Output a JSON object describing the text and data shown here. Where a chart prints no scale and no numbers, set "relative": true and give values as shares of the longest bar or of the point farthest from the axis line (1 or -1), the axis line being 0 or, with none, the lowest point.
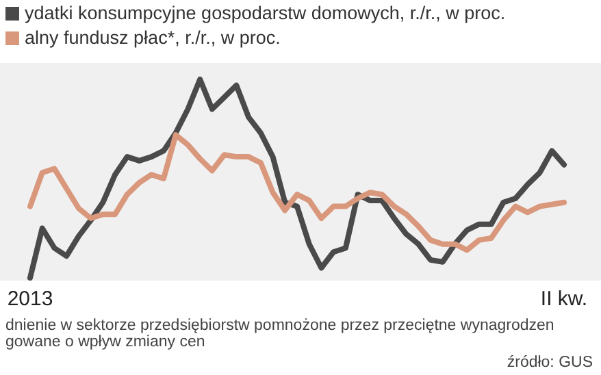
{
  "chart_data": {
    "type": "line",
    "relative": true,
    "legend": "top left",
    "categories": [
      "2013",
      null,
      null,
      null,
      null,
      null,
      null,
      null,
      null,
      null,
      null,
      null,
      null,
      null,
      null,
      null,
      null,
      null,
      null,
      null,
      null,
      null,
      null,
      null,
      null,
      null,
      null,
      null,
      null,
      null,
      null,
      null,
      null,
      null,
      null,
      null,
      null,
      null,
      null,
      null,
      null,
      null,
      null,
      null,
      "II kw."
    ],
    "series": [
      {
        "name": "ydatki konsumpcyjne gospodarstw domowych, r./r., w proc.",
        "color": "#4a4a4a",
        "values": [
          0,
          0.25,
          0.15,
          0.11,
          0.21,
          0.29,
          0.38,
          0.52,
          0.61,
          0.59,
          0.61,
          0.64,
          0.73,
          0.85,
          1,
          0.85,
          0.91,
          0.97,
          0.81,
          0.73,
          0.61,
          0.38,
          0.36,
          0.17,
          0.05,
          0.13,
          0.15,
          0.42,
          0.39,
          0.39,
          0.3,
          0.22,
          0.17,
          0.09,
          0.08,
          0.17,
          0.24,
          0.27,
          0.27,
          0.38,
          0.4,
          0.47,
          0.53,
          0.64,
          0.57
        ]
      },
      {
        "name": "alny fundusz płac*, r./r., w proc.",
        "color": "#d9977c",
        "values": [
          0.36,
          0.53,
          0.55,
          0.45,
          0.35,
          0.3,
          0.32,
          0.32,
          0.42,
          0.48,
          0.52,
          0.5,
          0.72,
          0.67,
          0.6,
          0.54,
          0.62,
          0.61,
          0.61,
          0.58,
          0.43,
          0.34,
          0.42,
          0.39,
          0.3,
          0.36,
          0.36,
          0.4,
          0.43,
          0.42,
          0.36,
          0.32,
          0.26,
          0.19,
          0.17,
          0.17,
          0.14,
          0.19,
          0.2,
          0.29,
          0.36,
          0.33,
          0.36,
          0.37,
          0.38
        ]
      }
    ],
    "annotations": [
      "dnienie w sektorze przedsiębiorstw pomnożone przez przeciętne wynagrodzen",
      "gowane o wpływ zmiany cen",
      "źródło: GUS"
    ]
  }
}
